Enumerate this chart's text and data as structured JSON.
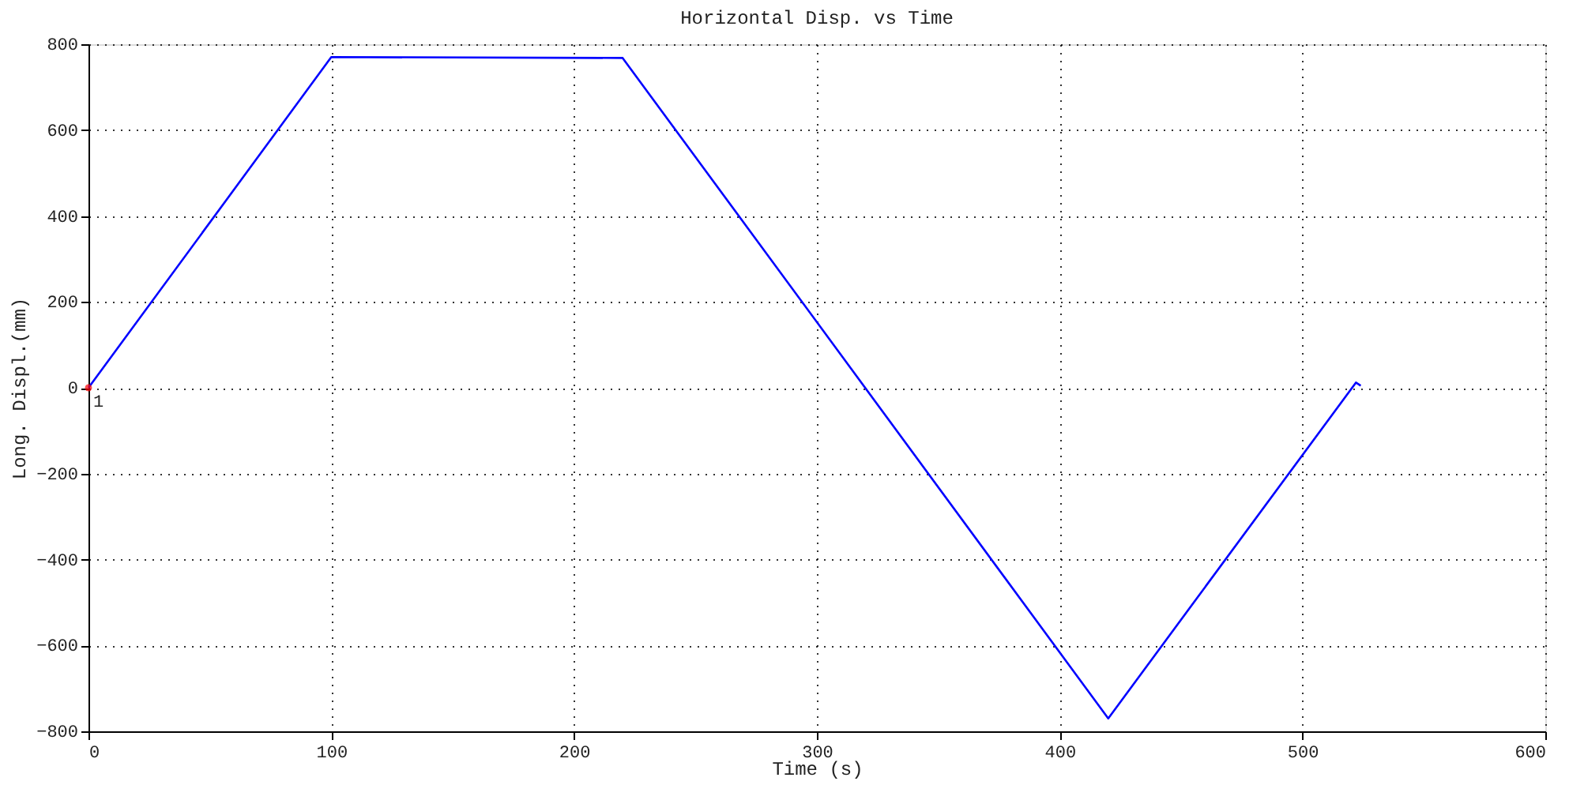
{
  "chart_data": {
    "type": "line",
    "title": "Horizontal Disp. vs Time",
    "xlabel": "Time (s)",
    "ylabel": "Long. Displ.(mm)",
    "series": [
      {
        "color": "#0000ff",
        "x": [
          0,
          100,
          220,
          420,
          522,
          524
        ],
        "values": [
          0,
          770,
          768,
          -770,
          12,
          5
        ]
      },
      {
        "type": "scatter",
        "color": "#ff0000",
        "marker": "circle",
        "x": [
          0
        ],
        "values": [
          0
        ]
      }
    ],
    "annotations": [
      {
        "text": "1",
        "x": 0,
        "y": 0
      }
    ],
    "xlim": [
      0,
      600
    ],
    "xticks": [
      0,
      100,
      200,
      300,
      400,
      500,
      600
    ],
    "ylim": [
      -800,
      800
    ],
    "yticks": [
      -800,
      -600,
      -400,
      -200,
      0,
      200,
      400,
      600,
      800
    ],
    "grid": true
  }
}
